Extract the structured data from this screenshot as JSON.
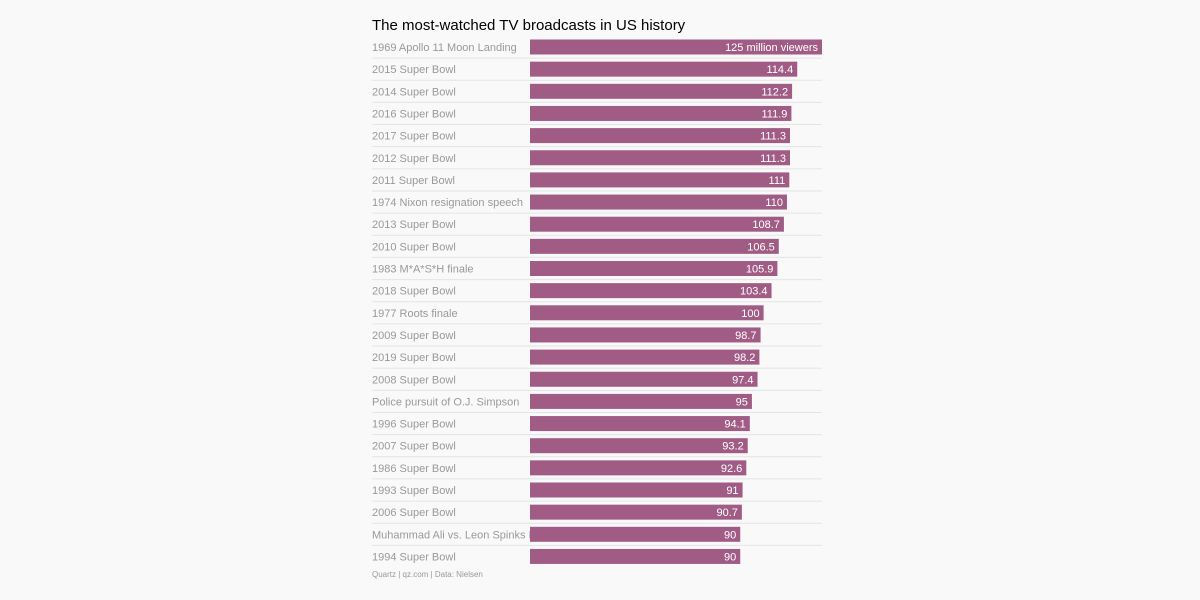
{
  "chart_data": {
    "type": "bar",
    "orientation": "horizontal",
    "title": "The most-watched TV broadcasts in US history",
    "source": "Quartz | qz.com | Data: Nielsen",
    "unit_label": "million viewers",
    "xlim": [
      0,
      125
    ],
    "grid": false,
    "bar_color": "#a05c85",
    "categories": [
      "1969 Apollo 11 Moon Landing",
      "2015 Super Bowl",
      "2014 Super Bowl",
      "2016 Super Bowl",
      "2017 Super Bowl",
      "2012 Super Bowl",
      "2011 Super Bowl",
      "1974 Nixon resignation speech",
      "2013 Super Bowl",
      "2010 Super Bowl",
      "1983 M*A*S*H finale",
      "2018 Super Bowl",
      "1977 Roots finale",
      "2009 Super Bowl",
      "2019 Super Bowl",
      "2008 Super Bowl",
      "Police pursuit of O.J. Simpson",
      "1996 Super Bowl",
      "2007 Super Bowl",
      "1986 Super Bowl",
      "1993 Super Bowl",
      "2006 Super Bowl",
      "Muhammad Ali vs. Leon Spinks II",
      "1994 Super Bowl"
    ],
    "values": [
      125,
      114.4,
      112.2,
      111.9,
      111.3,
      111.3,
      111,
      110,
      108.7,
      106.5,
      105.9,
      103.4,
      100,
      98.7,
      98.2,
      97.4,
      95,
      94.1,
      93.2,
      92.6,
      91,
      90.7,
      90,
      90
    ],
    "value_labels": [
      "125 million viewers",
      "114.4",
      "112.2",
      "111.9",
      "111.3",
      "111.3",
      "111",
      "110",
      "108.7",
      "106.5",
      "105.9",
      "103.4",
      "100",
      "98.7",
      "98.2",
      "97.4",
      "95",
      "94.1",
      "93.2",
      "92.6",
      "91",
      "90.7",
      "90",
      "90"
    ]
  }
}
